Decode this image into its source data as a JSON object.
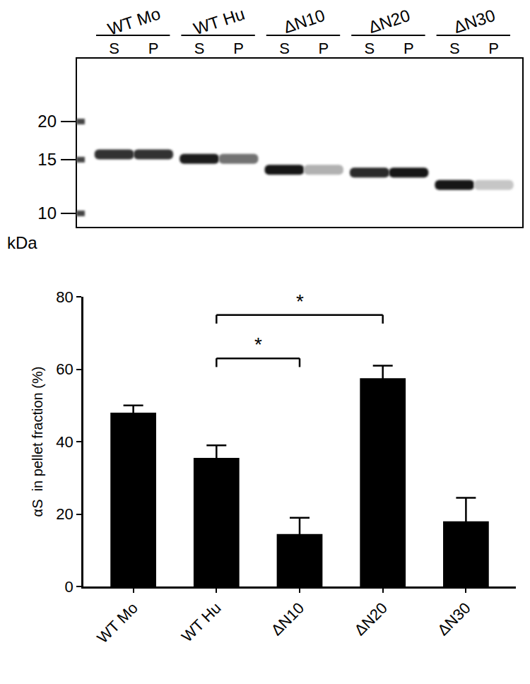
{
  "blot": {
    "unit": "kDa",
    "markers": [
      20,
      15,
      10
    ],
    "groups": [
      {
        "label": "WT Mo",
        "lanes": [
          "S",
          "P"
        ],
        "bands": [
          {
            "kda": 15.6,
            "intensity": 0.85
          },
          {
            "kda": 15.6,
            "intensity": 0.85
          }
        ]
      },
      {
        "label": "WT Hu",
        "lanes": [
          "S",
          "P"
        ],
        "bands": [
          {
            "kda": 15.1,
            "intensity": 0.95
          },
          {
            "kda": 15.1,
            "intensity": 0.55
          }
        ]
      },
      {
        "label": "ΔN10",
        "lanes": [
          "S",
          "P"
        ],
        "bands": [
          {
            "kda": 13.9,
            "intensity": 1.0
          },
          {
            "kda": 13.9,
            "intensity": 0.25
          }
        ]
      },
      {
        "label": "ΔN20",
        "lanes": [
          "S",
          "P"
        ],
        "bands": [
          {
            "kda": 13.6,
            "intensity": 0.9
          },
          {
            "kda": 13.6,
            "intensity": 1.0
          }
        ]
      },
      {
        "label": "ΔN30",
        "lanes": [
          "S",
          "P"
        ],
        "bands": [
          {
            "kda": 12.4,
            "intensity": 1.0
          },
          {
            "kda": 12.4,
            "intensity": 0.15
          }
        ]
      }
    ]
  },
  "chart_data": {
    "type": "bar",
    "y_label": "αS  in pellet fraction (%)",
    "categories": [
      "WT Mo",
      "WT Hu",
      "ΔN10",
      "ΔN20",
      "ΔN30"
    ],
    "values": [
      48,
      35.5,
      14.5,
      57.5,
      18
    ],
    "errors": [
      2,
      3.5,
      4.5,
      3.5,
      6.5
    ],
    "color": "#000000",
    "ylim": [
      0,
      80
    ],
    "yticks": [
      0,
      20,
      40,
      60,
      80
    ],
    "grid": false,
    "significance": [
      {
        "from": "WT Hu",
        "to": "ΔN10",
        "y": 63,
        "label": "*"
      },
      {
        "from": "WT Hu",
        "to": "ΔN20",
        "y": 75,
        "label": "*"
      }
    ]
  }
}
